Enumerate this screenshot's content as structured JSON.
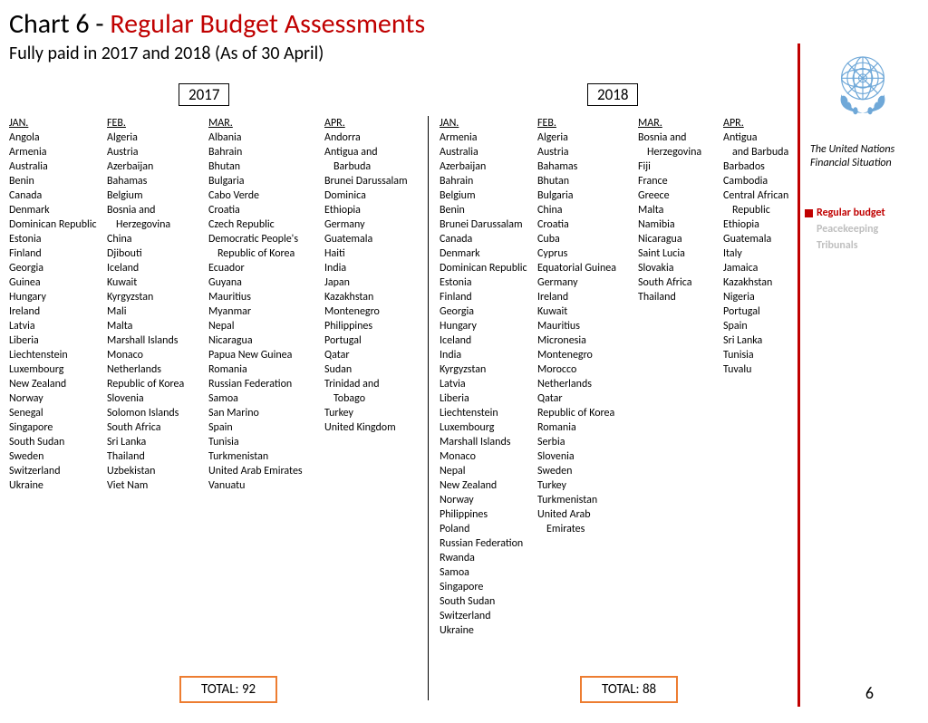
{
  "title": {
    "part1": "Chart 6 - ",
    "part2": "Regular Budget Assessments"
  },
  "subtitle": "Fully paid in 2017 and 2018 (As of 30 April)",
  "years": {
    "y2017": "2017",
    "y2018": "2018"
  },
  "months": {
    "jan": "JAN.",
    "feb": "FEB.",
    "mar": "MAR.",
    "apr": "APR."
  },
  "y2017": {
    "jan": [
      "Angola",
      "Armenia",
      "Australia",
      "Benin",
      "Canada",
      "Denmark",
      "Dominican Republic",
      "Estonia",
      "Finland",
      "Georgia",
      "Guinea",
      "Hungary",
      "Ireland",
      "Latvia",
      "Liberia",
      "Liechtenstein",
      "Luxembourg",
      "New Zealand",
      "Norway",
      "Senegal",
      "Singapore",
      "South Sudan",
      "Sweden",
      "Switzerland",
      "Ukraine"
    ],
    "feb": [
      "Algeria",
      "Austria",
      "Azerbaijan",
      "Bahamas",
      "Belgium",
      "Bosnia and",
      "   Herzegovina",
      "China",
      "Djibouti",
      "Iceland",
      "Kuwait",
      "Kyrgyzstan",
      "Mali",
      "Malta",
      "Marshall Islands",
      "Monaco",
      "Netherlands",
      "Republic of Korea",
      "Slovenia",
      "Solomon Islands",
      "South Africa",
      "Sri Lanka",
      "Thailand",
      "Uzbekistan",
      "Viet Nam"
    ],
    "mar": [
      "Albania",
      "Bahrain",
      "Bhutan",
      "Bulgaria",
      "Cabo Verde",
      "Croatia",
      "Czech Republic",
      "Democratic  People's",
      "   Republic of Korea",
      "Ecuador",
      "Guyana",
      "Mauritius",
      "Myanmar",
      "Nepal",
      "Nicaragua",
      "Papua New Guinea",
      "Romania",
      "Russian Federation",
      "Samoa",
      "San Marino",
      "Spain",
      "Tunisia",
      "Turkmenistan",
      "United Arab Emirates",
      "Vanuatu"
    ],
    "apr": [
      "Andorra",
      "Antigua and",
      "   Barbuda",
      "Brunei Darussalam",
      "Dominica",
      "Ethiopia",
      "Germany",
      "Guatemala",
      "Haiti",
      "India",
      "Japan",
      "Kazakhstan",
      "Montenegro",
      "Philippines",
      "Portugal",
      "Qatar",
      "Sudan",
      "Trinidad and",
      "   Tobago",
      "Turkey",
      "United Kingdom"
    ]
  },
  "y2018": {
    "jan": [
      "Armenia",
      "Australia",
      "Azerbaijan",
      "Bahrain",
      "Belgium",
      "Benin",
      "Brunei Darussalam",
      "Canada",
      "Denmark",
      "Dominican Republic",
      "Estonia",
      "Finland",
      "Georgia",
      "Hungary",
      "Iceland",
      "India",
      "Kyrgyzstan",
      "Latvia",
      "Liberia",
      "Liechtenstein",
      "Luxembourg",
      "Marshall Islands",
      "Monaco",
      "Nepal",
      "New Zealand",
      "Norway",
      "Philippines",
      "Poland",
      "Russian Federation",
      "Rwanda",
      "Samoa",
      "Singapore",
      "South Sudan",
      "Switzerland",
      "Ukraine"
    ],
    "feb": [
      "Algeria",
      "Austria",
      "Bahamas",
      "Bhutan",
      "Bulgaria",
      "China",
      "Croatia",
      "Cuba",
      "Cyprus",
      "Equatorial Guinea",
      "Germany",
      "Ireland",
      "Kuwait",
      "Mauritius",
      "Micronesia",
      "Montenegro",
      "Morocco",
      "Netherlands",
      "Qatar",
      "Republic of Korea",
      "Romania",
      "Serbia",
      "Slovenia",
      "Sweden",
      "Turkey",
      "Turkmenistan",
      "United Arab",
      "   Emirates"
    ],
    "mar": [
      "Bosnia and",
      "   Herzegovina",
      "Fiji",
      "France",
      "Greece",
      "Malta",
      "Namibia",
      "Nicaragua",
      "Saint Lucia",
      "Slovakia",
      "South Africa",
      "Thailand"
    ],
    "apr": [
      "Antigua",
      "   and Barbuda",
      "Barbados",
      "Cambodia",
      "Central African",
      "   Republic",
      "Ethiopia",
      "Guatemala",
      "Italy",
      "Jamaica",
      "Kazakhstan",
      "Nigeria",
      "Portugal",
      "Spain",
      "Sri Lanka",
      "Tunisia",
      "Tuvalu"
    ]
  },
  "totals": {
    "t2017": "TOTAL: 92",
    "t2018": "TOTAL: 88"
  },
  "sidebar": {
    "caption": "The United Nations Financial Situation",
    "legend": {
      "active": "Regular budget",
      "dim1": "Peacekeeping",
      "dim2": "Tribunals"
    }
  },
  "page_num": "6",
  "colors": {
    "accent_red": "#c00000",
    "orange_border": "#ed7d31",
    "un_blue": "#4a8fc7",
    "dim_text": "#bfbfbf"
  }
}
